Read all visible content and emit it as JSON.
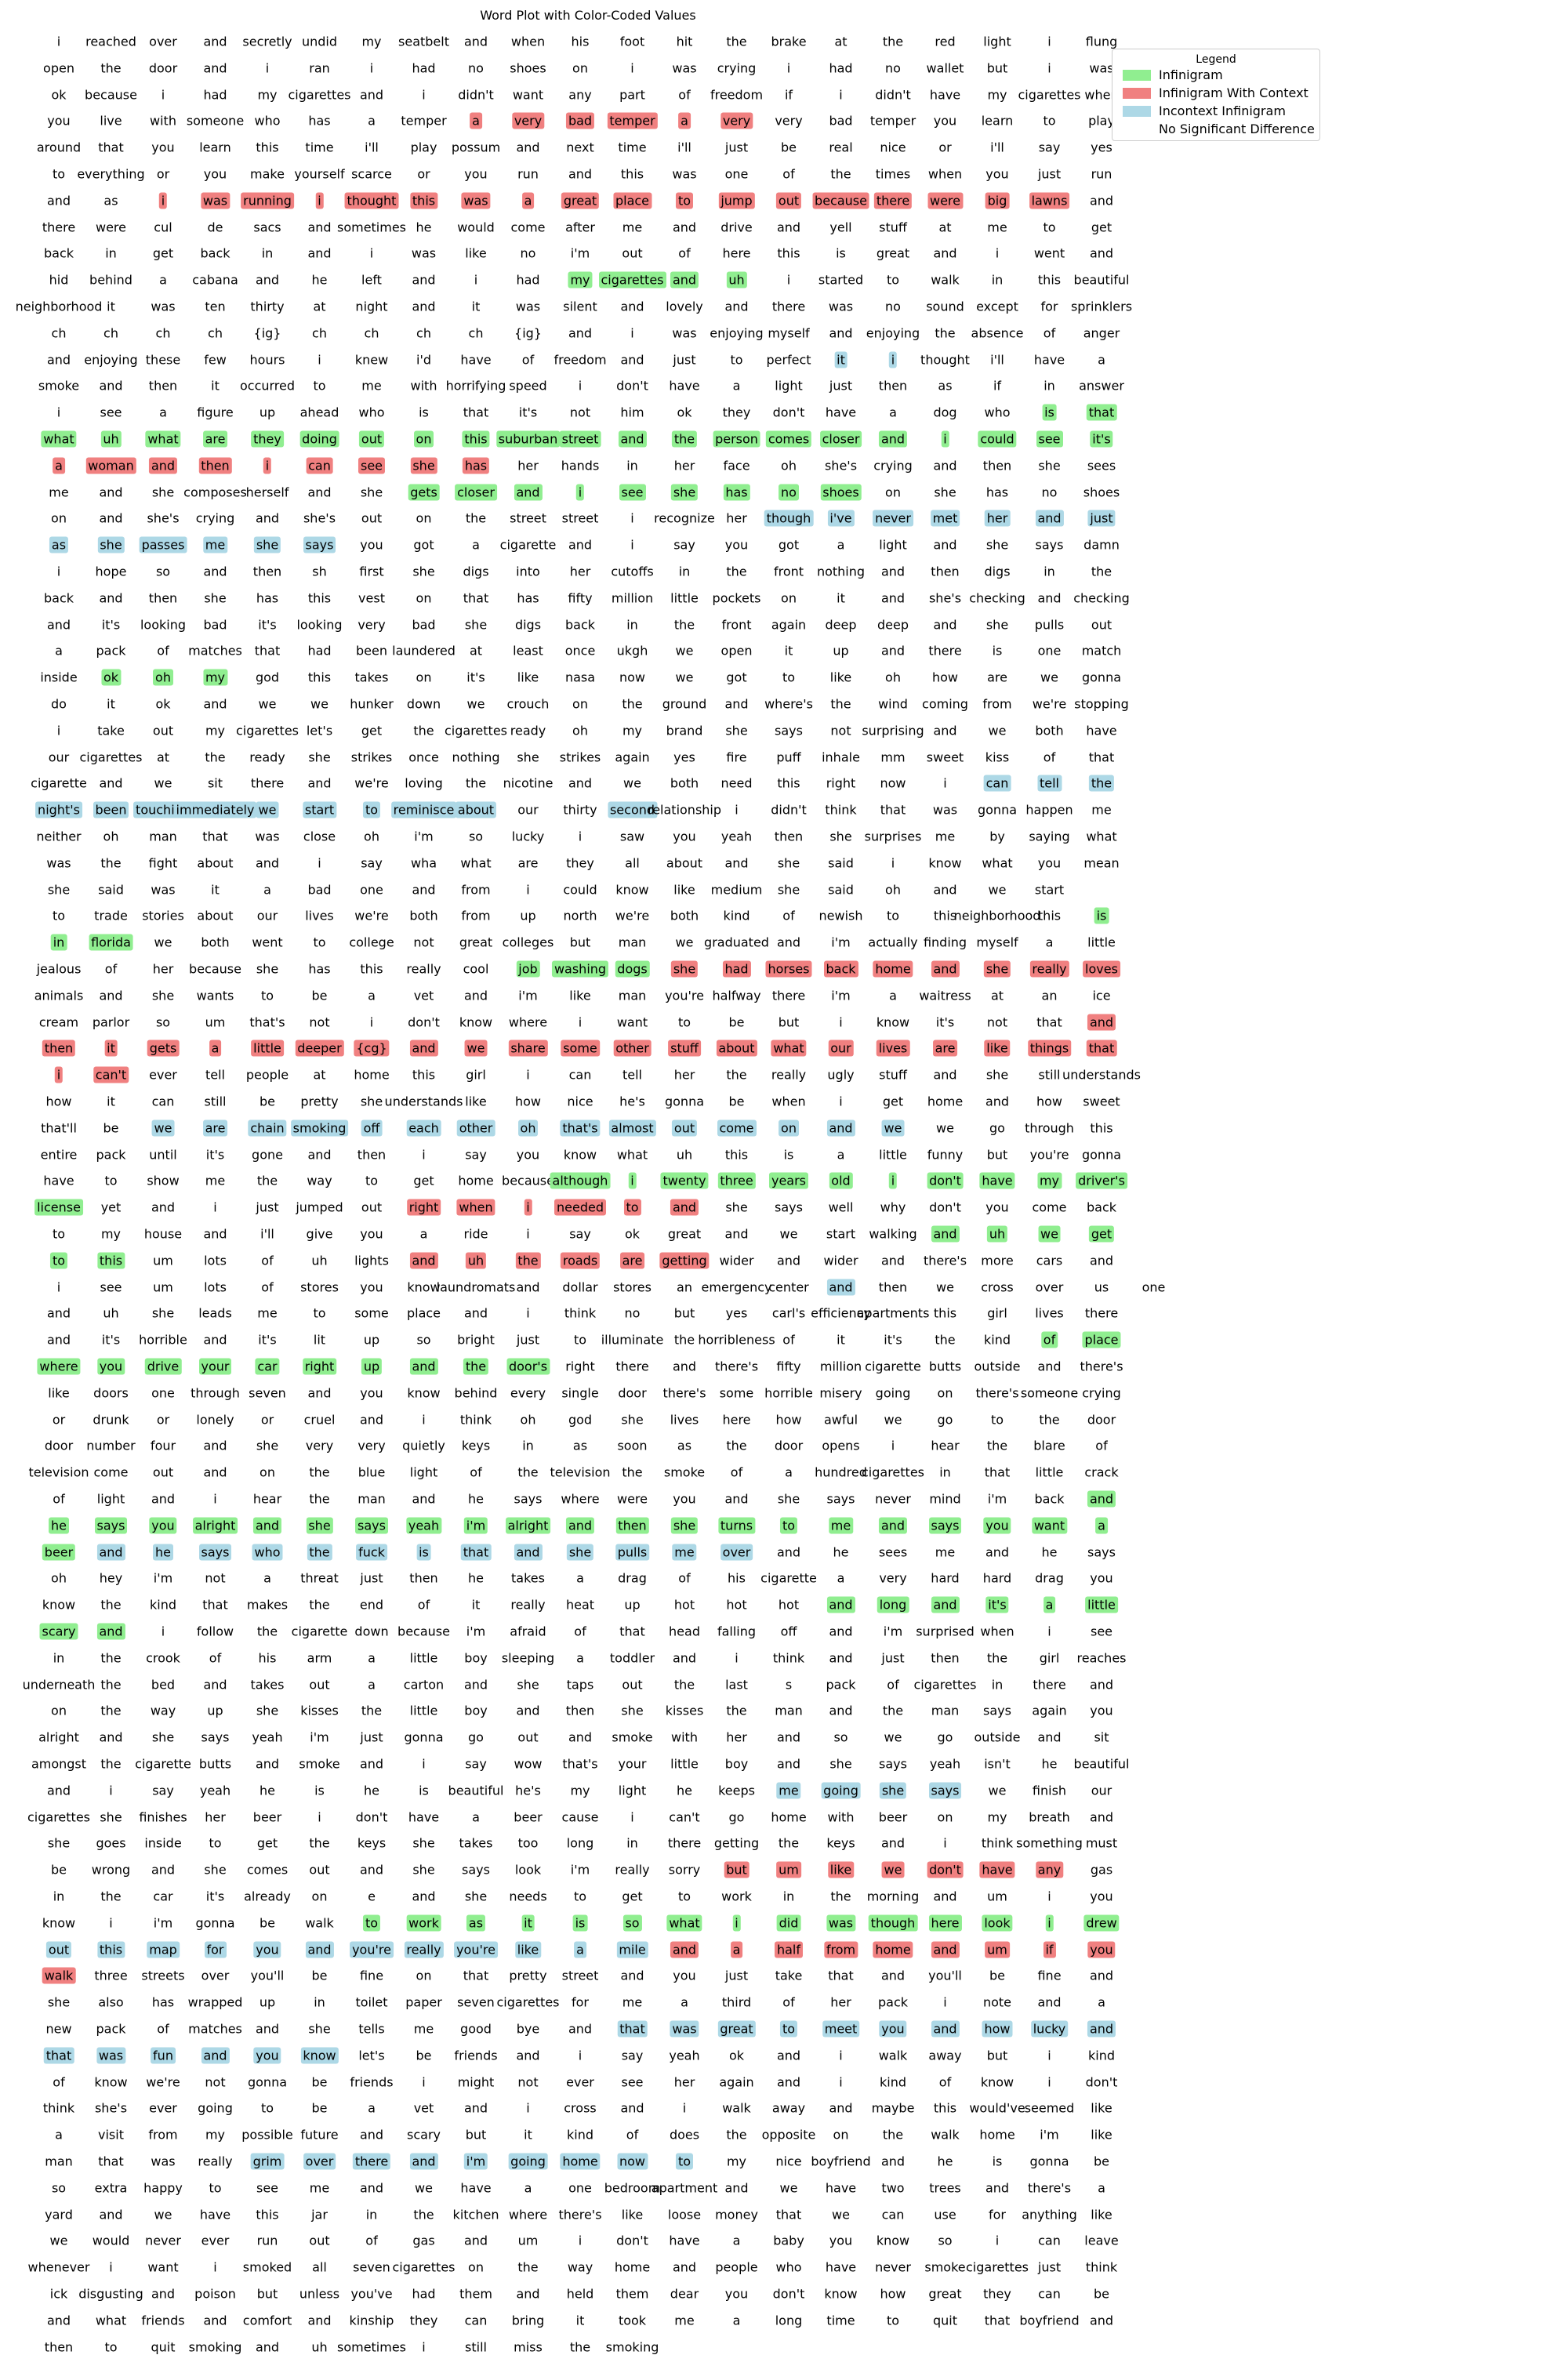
{
  "chart_data": {
    "type": "table",
    "title": "Word Plot with Color-Coded Values",
    "legend_position": "top-right",
    "legend": {
      "title": "Legend",
      "items": [
        {
          "label": "Infinigram",
          "color": "#90ee90"
        },
        {
          "label": "Infinigram With Context",
          "color": "#f08080"
        },
        {
          "label": "Incontext Infinigram",
          "color": "#add8e6"
        },
        {
          "label": "No Significant Difference",
          "color": "#ffffff"
        }
      ]
    },
    "color_codes": {
      "g": "#90ee90",
      "r": "#f08080",
      "b": "#add8e6"
    },
    "rows": [
      "i reached over and secretly undid my seatbelt and when his foot hit the brake at the red light i flung",
      "open the door and i ran i had no shoes on i was crying i had no wallet but i was",
      "ok because i had my cigarettes and i didn't want any part of freedom if i didn't have my cigarettes when",
      "you live with someone who has a temper a|r very|r bad|r temper|r a|r very|r very bad temper you learn to play",
      "around that you learn this time i'll play possum and next time i'll just be real nice or i'll say yes",
      "to everything or you make yourself scarce or you run and this was one of the times when you just run",
      "and as i|r was|r running|r i|r thought|r this|r was|r a|r great|r place|r to|r jump|r out|r because|r there|r were|r big|r lawns|r and",
      "there were cul de sacs and sometimes he would come after me and drive and yell stuff at me to get",
      "back in get back in and i was like no i'm out of here this is great and i went and",
      "hid behind a cabana and he left and i had my|g cigarettes|g and|g uh|g i started to walk in this beautiful",
      "neighborhood it was ten thirty at night and it was silent and lovely and there was no sound except for sprinklers",
      "ch ch ch ch {ig} ch ch ch ch {ig} and i was enjoying myself and enjoying the absence of anger",
      "and enjoying these few hours i knew i'd have of freedom and just to perfect it|b i|b thought i'll have a",
      "smoke and then it occurred to me with horrifying speed i don't have a light just then as if in answer",
      "i see a figure up ahead who is that it's not him ok they don't have a dog who is|g that|g",
      "what|g uh|g what|g are|g they|g doing|g out|g on|g this|g suburban|g street|g and|g the|g person|g comes|g closer|g and|g i|g could|g see|g it's|g",
      "a|r woman|r and|r then|r i|r can|r see|r she|r has|r her hands in her face oh she's crying and then she sees",
      "me and she composes herself and she gets|g closer|g and|g i|g see|g she|g has|g no|g shoes|g on she has no shoes",
      "on and she's crying and she's out on the street street i recognize her though|b i've|b never|b met|b her|b and|b just|b",
      "as|b she|b passes|b me|b she|b says|b you got a cigarette and i say you got a light and she says damn",
      "i hope so and then sh first she digs into her cutoffs in the front nothing and then digs in the",
      "back and then she has this vest on that has fifty million little pockets on it and she's checking and checking",
      "and it's looking bad it's looking very bad she digs back in the front again deep deep and she pulls out",
      "a pack of matches that had been laundered at least once ukgh we open it up and there is one match",
      "inside ok|g oh|g my|g god this takes on it's like nasa now we got to like oh how are we gonna",
      "do it ok and we we hunker down we crouch on the ground and where's the wind coming from we're stopping",
      "i take out my cigarettes let's get the cigarettes ready oh my brand she says not surprising and we both have",
      "our cigarettes at the ready she strikes once nothing she strikes again yes fire puff inhale mm sweet kiss of that",
      "cigarette and we sit there and we're loving the nicotine and we both need this right now i can|b tell|b the|b",
      "night's|b been|b touching|b immediately|b we|b start|b to|b reminisce|b about|b our thirty second|b relationship i didn't think that was gonna happen me",
      "neither oh man that was close oh i'm so lucky i saw you yeah then she surprises me by saying what",
      "was the fight about and i say wha what are they all about and she said i know what you mean",
      "she said was it a bad one and from i could know like medium she said oh and we start",
      "to trade stories about our lives we're both from up north we're both kind of newish to this neighborhood this is|g",
      "in|g florida|g we both went to college not great colleges but man we graduated and i'm actually finding myself a little",
      "jealous of her because she has this really cool job|g washing|g dogs|g she|r had|r horses|r back|r home|r and|r she|r really|r loves|r",
      "animals and she wants to be a vet and i'm like man you're halfway there i'm a waitress at an ice",
      "cream parlor so um that's not i don't know where i want to be but i know it's not that and|r",
      "then|r it|r gets|r a|r little|r deeper|r {cg}|r and|r we|r share|r some|r other|r stuff|r about|r what|r our|r lives|r are|r like|r things|r that|r",
      "i|r can't|r ever tell people at home this girl i can tell her the really ugly stuff and she still understands",
      "how it can still be pretty she understands like how nice he's gonna be when i get home and how sweet",
      "that'll be we|b are|b chain|b smoking|b off|b each|b other|b oh|b that's|b almost|b out|b come|b on|b and|b we|b we go through this",
      "entire pack until it's gone and then i say you know what uh this is a little funny but you're gonna",
      "have to show me the way to get home because although|g i|g twenty|g three|g years|g old|g i|g don't|g have|g my|g driver's|g",
      "license|g yet and i just jumped out right|r when|r i|r needed|r to|r and|r she says well why don't you come back",
      "to my house and i'll give you a ride i say ok great and we start walking and|g uh|g we|g get|g",
      "to|g this|g um lots of uh lights and|r uh|r the|r roads|r are|r getting|r wider and wider and there's more cars and",
      "i see um lots of stores you know laundromats and dollar stores an emergency center and|b then we cross over us one",
      "and uh she leads me to some place and i think no but yes carl's efficiency apartments this girl lives there",
      "and it's horrible and it's lit up so bright just to illuminate the horribleness of it it's the kind of|g place|g",
      "where|g you|g drive|g your|g car|g right|g up|g and|g the|g door's|g right there and there's fifty million cigarette butts outside and there's",
      "like doors one through seven and you know behind every single door there's some horrible misery going on there's someone crying",
      "or drunk or lonely or cruel and i think oh god she lives here how awful we go to the door",
      "door number four and she very very quietly keys in as soon as the door opens i hear the blare of",
      "television come out and on the blue light of the television the smoke of a hundred cigarettes in that little crack",
      "of light and i hear the man and he says where were you and she says never mind i'm back and|g",
      "he|g says|g you|g alright|g and|g she|g says|g yeah|g i'm|g alright|g and|g then|g she|g turns|g to|g me|g and|g says|g you|g want|g a|g",
      "beer|g and|b he|b says|b who|b the|b fuck|b is|b that|b and|b she|b pulls|b me|b over|b and he sees me and he says",
      "oh hey i'm not a threat just then he takes a drag of his cigarette a very hard hard drag you",
      "know the kind that makes the end of it really heat up hot hot hot and|g long|g and|g it's|g a|g little|g",
      "scary|g and|g i follow the cigarette down because i'm afraid of that head falling off and i'm surprised when i see",
      "in the crook of his arm a little boy sleeping a toddler and i think and just then the girl reaches",
      "underneath the bed and takes out a carton and she taps out the last s pack of cigarettes in there and",
      "on the way up she kisses the little boy and then she kisses the man and the man says again you",
      "alright and she says yeah i'm just gonna go out and smoke with her and so we go outside and sit",
      "amongst the cigarette butts and smoke and i say wow that's your little boy and she says yeah isn't he beautiful",
      "and i say yeah he is he is beautiful he's my light he keeps me|b going|b she|b says|b we finish our",
      "cigarettes she finishes her beer i don't have a beer cause i can't go home with beer on my breath and",
      "she goes inside to get the keys she takes too long in there getting the keys and i think something must",
      "be wrong and she comes out and she says look i'm really sorry but|r um|r like|r we|r don't|r have|r any|r gas",
      "in the car it's already on e and she needs to get to work in the morning and um i you",
      "know i i'm gonna be walk to|g work|g as|g it|g is|g so|g what|g i|g did|g was|g though|g here|g look|g i|g drew|g",
      "out|b this|b map|b for|b you|b and|b you're|b really|b you're|b like|b a|b mile|b and|r a|r half|r from|r home|r and|r um|r if|r you|r",
      "walk|r three streets over you'll be fine on that pretty street and you just take that and you'll be fine and",
      "she also has wrapped up in toilet paper seven cigarettes for me a third of her pack i note and a",
      "new pack of matches and she tells me good bye and that|b was|b great|b to|b meet|b you|b and|b how|b lucky|b and|b",
      "that|b was|b fun|b and|b you|b know|b let's be friends and i say yeah ok and i walk away but i kind",
      "of know we're not gonna be friends i might not ever see her again and i kind of know i don't",
      "think she's ever going to be a vet and i cross and i walk away and maybe this would've seemed like",
      "a visit from my possible future and scary but it kind of does the opposite on the walk home i'm like",
      "man that was really grim|b over|b there|b and|b i'm|b going|b home|b now|b to|b my nice boyfriend and he is gonna be",
      "so extra happy to see me and we have a one bedroom apartment and we have two trees and there's a",
      "yard and we have this jar in the kitchen where there's like loose money that we can use for anything like",
      "we would never ever run out of gas and um i don't have a baby you know so i can leave",
      "whenever i want i smoked all seven cigarettes on the way home and people who have never smoke cigarettes just think",
      "ick disgusting and poison but unless you've had them and held them dear you don't know how great they can be",
      "and what friends and comfort and kinship they can bring it took me a long time to quit that boyfriend and",
      "then to quit smoking and uh sometimes i still miss the smoking"
    ]
  }
}
